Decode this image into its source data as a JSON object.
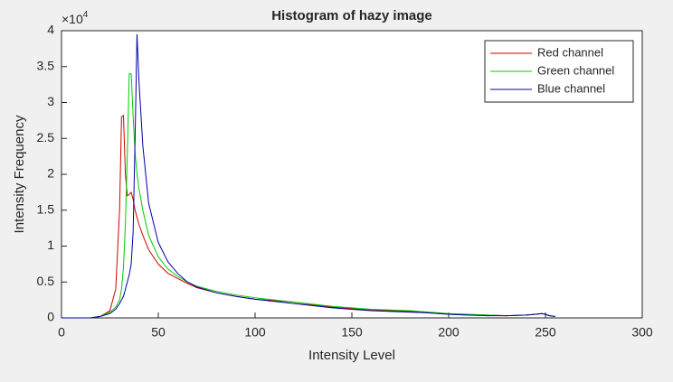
{
  "chart_data": {
    "type": "line",
    "title": "Histogram of hazy image",
    "x_label": "Intensity Level",
    "y_label": "Intensity Frequency",
    "y_multiplier": {
      "base": "×10",
      "exponent": "4"
    },
    "x": [
      0,
      10,
      15,
      20,
      25,
      28,
      30,
      31,
      32,
      33,
      34,
      35,
      36,
      37,
      38,
      39,
      40,
      42,
      45,
      50,
      55,
      60,
      65,
      70,
      80,
      90,
      100,
      110,
      120,
      130,
      140,
      150,
      160,
      170,
      180,
      190,
      200,
      210,
      220,
      230,
      240,
      245,
      248,
      250,
      252,
      255
    ],
    "series": [
      {
        "name": "Red channel",
        "color": "#d00000",
        "values": [
          0,
          0,
          0,
          0.02,
          0.1,
          0.4,
          1.5,
          2.8,
          2.82,
          2.0,
          1.7,
          1.72,
          1.75,
          1.65,
          1.5,
          1.4,
          1.3,
          1.15,
          0.95,
          0.75,
          0.62,
          0.55,
          0.48,
          0.42,
          0.35,
          0.3,
          0.26,
          0.24,
          0.22,
          0.18,
          0.15,
          0.13,
          0.11,
          0.1,
          0.09,
          0.07,
          0.05,
          0.04,
          0.04,
          0.03,
          0.04,
          0.05,
          0.06,
          0.05,
          0.03,
          0.02
        ]
      },
      {
        "name": "Green channel",
        "color": "#00cc00",
        "values": [
          0,
          0,
          0,
          0.02,
          0.08,
          0.15,
          0.25,
          0.4,
          0.7,
          1.3,
          2.3,
          3.4,
          3.4,
          2.8,
          2.3,
          2.0,
          1.8,
          1.5,
          1.15,
          0.85,
          0.68,
          0.58,
          0.5,
          0.44,
          0.37,
          0.32,
          0.28,
          0.25,
          0.22,
          0.19,
          0.16,
          0.14,
          0.12,
          0.11,
          0.1,
          0.08,
          0.06,
          0.05,
          0.04,
          0.03,
          0.04,
          0.05,
          0.06,
          0.05,
          0.03,
          0.02
        ]
      },
      {
        "name": "Blue channel",
        "color": "#0000aa",
        "values": [
          0,
          0,
          0,
          0.02,
          0.06,
          0.12,
          0.2,
          0.25,
          0.3,
          0.4,
          0.5,
          0.6,
          0.75,
          1.2,
          2.5,
          3.95,
          3.3,
          2.4,
          1.6,
          1.05,
          0.78,
          0.62,
          0.5,
          0.43,
          0.35,
          0.3,
          0.26,
          0.23,
          0.2,
          0.17,
          0.14,
          0.12,
          0.1,
          0.09,
          0.08,
          0.07,
          0.05,
          0.04,
          0.03,
          0.03,
          0.04,
          0.05,
          0.06,
          0.05,
          0.03,
          0.02
        ]
      }
    ],
    "xlim": [
      0,
      300
    ],
    "xticks": [
      0,
      50,
      100,
      150,
      200,
      250,
      300
    ],
    "ylim": [
      0,
      4
    ],
    "yticks": [
      0,
      0.5,
      1,
      1.5,
      2,
      2.5,
      3,
      3.5,
      4
    ],
    "legend": "upper right"
  }
}
